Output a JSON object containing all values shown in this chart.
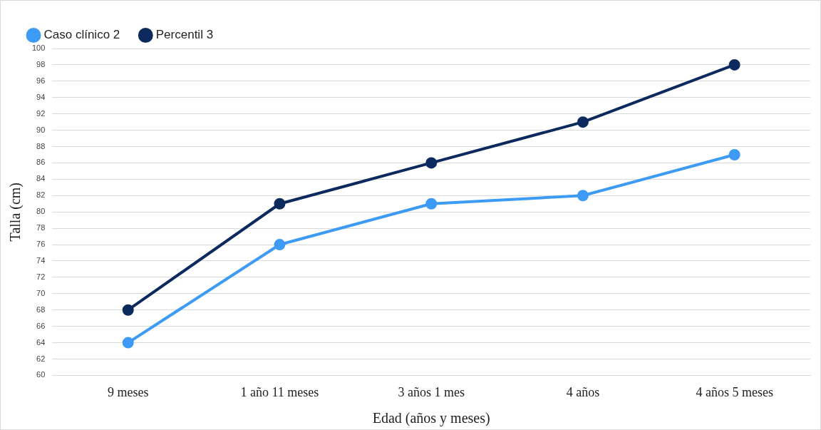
{
  "chart_data": {
    "type": "line",
    "xlabel": "Edad (años y meses)",
    "ylabel": "Talla (cm)",
    "categories": [
      "9 meses",
      "1 año 11 meses",
      "3 años 1 mes",
      "4 años",
      "4 años 5 meses"
    ],
    "series": [
      {
        "name": "Caso clínico 2",
        "color": "#3d9bf5",
        "values": [
          64,
          76,
          81,
          82,
          87
        ]
      },
      {
        "name": "Percentil 3",
        "color": "#0d2a5e",
        "values": [
          68,
          81,
          86,
          91,
          98
        ]
      }
    ],
    "ylim": [
      60,
      100
    ],
    "yticks": [
      60,
      62,
      64,
      66,
      68,
      70,
      72,
      74,
      76,
      78,
      80,
      82,
      84,
      86,
      88,
      90,
      92,
      94,
      96,
      98,
      100
    ],
    "grid": "y",
    "legend": "top left",
    "marker": "circle",
    "line_style": "solid"
  }
}
